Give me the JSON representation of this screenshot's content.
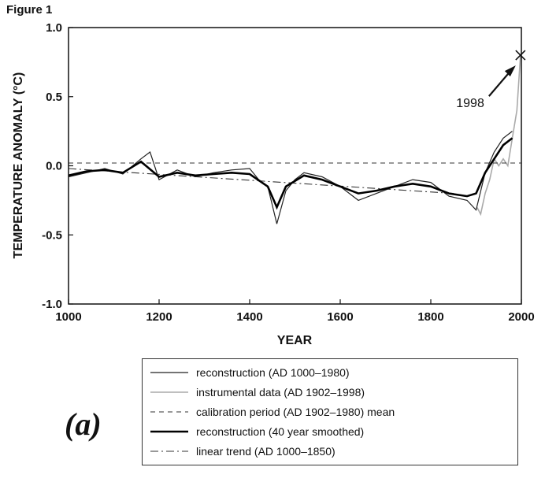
{
  "figure_label": "Figure 1",
  "panel_label": "(a)",
  "chart_data": {
    "type": "line",
    "title": "",
    "xlabel": "YEAR",
    "ylabel": "TEMPERATURE ANOMALY (°C)",
    "xlim": [
      1000,
      2000
    ],
    "ylim": [
      -1.0,
      1.0
    ],
    "x_ticks": [
      "1000",
      "1200",
      "1400",
      "1600",
      "1800",
      "2000"
    ],
    "y_ticks": [
      "1.0",
      "0.5",
      "0.0",
      "-0.5",
      "-1.0"
    ],
    "grid": false,
    "series": [
      {
        "name": "reconstruction (AD 1000–1980)",
        "style": "thin-black",
        "x": [
          1000,
          1040,
          1080,
          1120,
          1160,
          1180,
          1200,
          1240,
          1280,
          1320,
          1360,
          1400,
          1420,
          1440,
          1460,
          1480,
          1500,
          1520,
          1560,
          1600,
          1640,
          1680,
          1720,
          1760,
          1800,
          1840,
          1880,
          1900,
          1920,
          1940,
          1960,
          1980
        ],
        "y": [
          -0.08,
          -0.05,
          -0.02,
          -0.06,
          0.05,
          0.1,
          -0.1,
          -0.03,
          -0.08,
          -0.05,
          -0.03,
          -0.02,
          -0.1,
          -0.15,
          -0.42,
          -0.18,
          -0.1,
          -0.05,
          -0.08,
          -0.15,
          -0.25,
          -0.2,
          -0.15,
          -0.1,
          -0.12,
          -0.22,
          -0.25,
          -0.32,
          -0.05,
          0.1,
          0.2,
          0.25
        ]
      },
      {
        "name": "instrumental data (AD 1902–1998)",
        "style": "gray",
        "x": [
          1902,
          1910,
          1920,
          1930,
          1940,
          1950,
          1960,
          1970,
          1980,
          1990,
          1998
        ],
        "y": [
          -0.3,
          -0.35,
          -0.2,
          -0.1,
          0.05,
          0.0,
          0.05,
          0.0,
          0.2,
          0.4,
          0.8
        ]
      },
      {
        "name": "calibration period (AD 1902–1980) mean",
        "style": "dashed",
        "x": [
          1000,
          2000
        ],
        "y": [
          0.02,
          0.02
        ]
      },
      {
        "name": "reconstruction (40 year smoothed)",
        "style": "thick-black",
        "x": [
          1000,
          1040,
          1080,
          1120,
          1160,
          1200,
          1240,
          1280,
          1320,
          1360,
          1400,
          1440,
          1460,
          1480,
          1520,
          1560,
          1600,
          1640,
          1680,
          1720,
          1760,
          1800,
          1840,
          1880,
          1900,
          1920,
          1940,
          1960,
          1980
        ],
        "y": [
          -0.07,
          -0.04,
          -0.03,
          -0.05,
          0.03,
          -0.08,
          -0.05,
          -0.07,
          -0.06,
          -0.05,
          -0.06,
          -0.15,
          -0.3,
          -0.15,
          -0.07,
          -0.1,
          -0.15,
          -0.2,
          -0.18,
          -0.15,
          -0.13,
          -0.15,
          -0.2,
          -0.22,
          -0.2,
          -0.05,
          0.05,
          0.15,
          0.2
        ]
      },
      {
        "name": "linear trend (AD 1000–1850)",
        "style": "dash-dot",
        "x": [
          1000,
          1850
        ],
        "y": [
          -0.02,
          -0.2
        ]
      }
    ],
    "annotations": [
      {
        "text": "1998",
        "x": 1998,
        "y": 0.8
      }
    ]
  }
}
